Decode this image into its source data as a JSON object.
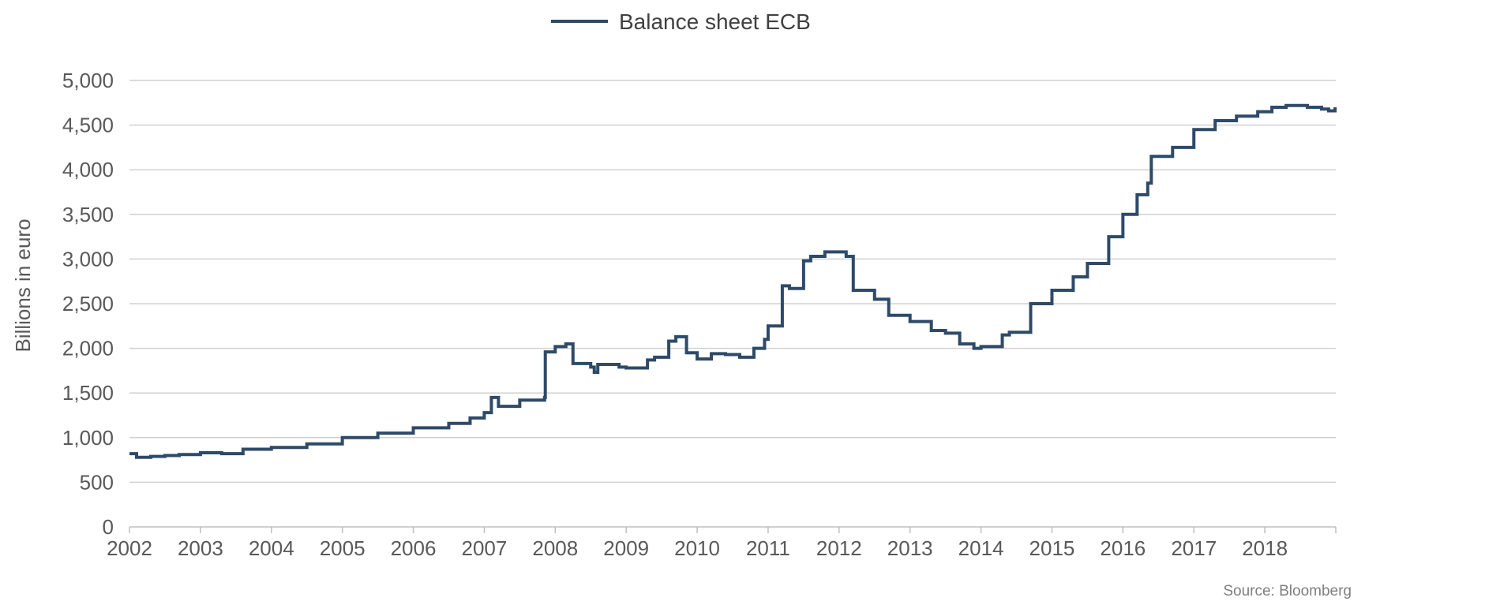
{
  "chart_data": {
    "type": "line",
    "title": "",
    "xlabel": "",
    "ylabel": "Billions in euro",
    "source": "Source: Bloomberg",
    "legend_position": "top-center",
    "grid": true,
    "xlim": [
      2002,
      2019
    ],
    "ylim": [
      0,
      5000
    ],
    "yticks": [
      0,
      500,
      1000,
      1500,
      2000,
      2500,
      3000,
      3500,
      4000,
      4500,
      5000
    ],
    "ytick_labels": [
      "0",
      "500",
      "1,000",
      "1,500",
      "2,000",
      "2,500",
      "3,000",
      "3,500",
      "4,000",
      "4,500",
      "5,000"
    ],
    "xticks": [
      2002,
      2003,
      2004,
      2005,
      2006,
      2007,
      2008,
      2009,
      2010,
      2011,
      2012,
      2013,
      2014,
      2015,
      2016,
      2017,
      2018
    ],
    "xtick_labels": [
      "2002",
      "2003",
      "2004",
      "2005",
      "2006",
      "2007",
      "2008",
      "2009",
      "2010",
      "2011",
      "2012",
      "2013",
      "2014",
      "2015",
      "2016",
      "2017",
      "2018"
    ],
    "series": [
      {
        "name": "Balance sheet ECB",
        "color": "#2e4a68",
        "x": [
          2002.0,
          2002.1,
          2002.3,
          2002.5,
          2002.7,
          2003.0,
          2003.3,
          2003.6,
          2004.0,
          2004.5,
          2005.0,
          2005.5,
          2006.0,
          2006.5,
          2006.8,
          2007.0,
          2007.1,
          2007.2,
          2007.5,
          2007.85,
          2007.86,
          2008.0,
          2008.15,
          2008.25,
          2008.5,
          2008.55,
          2008.6,
          2008.9,
          2009.0,
          2009.3,
          2009.4,
          2009.6,
          2009.7,
          2009.85,
          2010.0,
          2010.2,
          2010.4,
          2010.6,
          2010.8,
          2010.95,
          2011.0,
          2011.2,
          2011.3,
          2011.5,
          2011.6,
          2011.8,
          2012.1,
          2012.2,
          2012.5,
          2012.7,
          2013.0,
          2013.3,
          2013.5,
          2013.7,
          2013.9,
          2014.0,
          2014.3,
          2014.4,
          2014.7,
          2015.0,
          2015.3,
          2015.5,
          2015.8,
          2016.0,
          2016.2,
          2016.35,
          2016.4,
          2016.7,
          2017.0,
          2017.3,
          2017.6,
          2017.9,
          2018.1,
          2018.3,
          2018.6,
          2018.8,
          2018.9,
          2018.99
        ],
        "values": [
          820,
          780,
          790,
          800,
          810,
          830,
          820,
          870,
          890,
          930,
          1000,
          1050,
          1110,
          1160,
          1220,
          1280,
          1450,
          1350,
          1420,
          1450,
          1960,
          2020,
          2050,
          1830,
          1790,
          1730,
          1820,
          1790,
          1780,
          1870,
          1900,
          2080,
          2130,
          1950,
          1880,
          1940,
          1930,
          1900,
          2000,
          2100,
          2250,
          2700,
          2670,
          2980,
          3030,
          3080,
          3030,
          2650,
          2550,
          2370,
          2300,
          2200,
          2170,
          2050,
          2000,
          2020,
          2150,
          2180,
          2500,
          2650,
          2800,
          2950,
          3250,
          3500,
          3720,
          3850,
          4150,
          4250,
          4450,
          4550,
          4600,
          4650,
          4700,
          4720,
          4700,
          4680,
          4660,
          4700
        ]
      }
    ]
  }
}
